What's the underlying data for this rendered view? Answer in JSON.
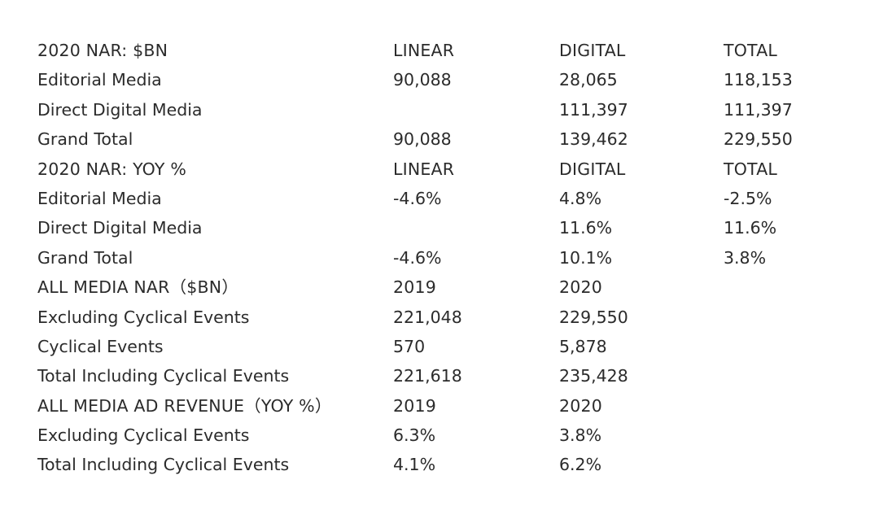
{
  "table": {
    "rows": [
      [
        "2020 NAR: $BN",
        "LINEAR",
        "DIGITAL",
        "TOTAL"
      ],
      [
        "Editorial Media",
        "90,088",
        "28,065",
        "118,153"
      ],
      [
        "Direct Digital Media",
        "",
        "111,397",
        "111,397"
      ],
      [
        "Grand Total",
        "90,088",
        "139,462",
        "229,550"
      ],
      [
        "2020 NAR: YOY %",
        "LINEAR",
        "DIGITAL",
        "TOTAL"
      ],
      [
        "Editorial Media",
        "-4.6%",
        "4.8%",
        "-2.5%"
      ],
      [
        "Direct Digital Media",
        "",
        "11.6%",
        "11.6%"
      ],
      [
        "Grand Total",
        "-4.6%",
        "10.1%",
        "3.8%"
      ],
      [
        "ALL MEDIA NAR（$BN）",
        "2019",
        "2020",
        ""
      ],
      [
        "Excluding Cyclical Events",
        "221,048",
        "229,550",
        ""
      ],
      [
        "Cyclical Events",
        "570",
        "5,878",
        ""
      ],
      [
        "Total Including Cyclical Events",
        "221,618",
        "235,428",
        ""
      ],
      [
        "ALL MEDIA AD REVENUE（YOY %）",
        "2019",
        "2020",
        ""
      ],
      [
        "Excluding Cyclical Events",
        "6.3%",
        "3.8%",
        ""
      ],
      [
        "Total Including Cyclical Events",
        "4.1%",
        "6.2%",
        ""
      ]
    ]
  }
}
